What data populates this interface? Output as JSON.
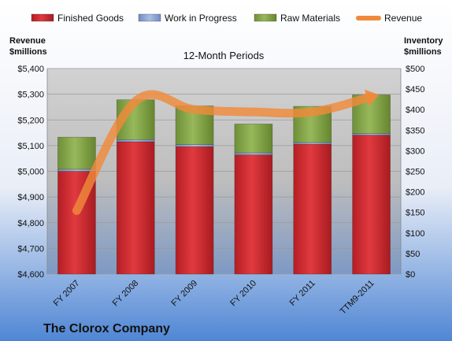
{
  "chart_data": {
    "type": "bar",
    "stacked": true,
    "subtitle": "12-Month Periods",
    "company": "The Clorox Company",
    "y_left_label": [
      "Revenue",
      "$millions"
    ],
    "y_right_label": [
      "Inventory",
      "$millions"
    ],
    "categories": [
      "FY 2007",
      "FY 2008",
      "FY 2009",
      "FY 2010",
      "FY 2011",
      "TTM9-2011"
    ],
    "series": [
      {
        "name": "Finished Goods",
        "axis": "right",
        "color": "#d42a2f",
        "values": [
          250,
          322,
          310,
          290,
          316,
          338
        ]
      },
      {
        "name": "Work in Progress",
        "axis": "right",
        "color": "#8fa8d6",
        "values": [
          5,
          5,
          5,
          5,
          4,
          4
        ]
      },
      {
        "name": "Raw Materials",
        "axis": "right",
        "color": "#8aaa4a",
        "values": [
          78,
          97,
          94,
          70,
          88,
          94
        ]
      },
      {
        "name": "Revenue",
        "axis": "left",
        "type": "line",
        "color": "#f08a3a",
        "values": [
          4847,
          5273,
          5240,
          5231,
          5231,
          5290
        ]
      }
    ],
    "y_left": {
      "min": 4600,
      "max": 5400,
      "step": 100,
      "ticks": [
        "$4,600",
        "$4,700",
        "$4,800",
        "$4,900",
        "$5,000",
        "$5,100",
        "$5,200",
        "$5,300",
        "$5,400"
      ]
    },
    "y_right": {
      "min": 0,
      "max": 500,
      "step": 50,
      "ticks": [
        "$0",
        "$50",
        "$100",
        "$150",
        "$200",
        "$250",
        "$300",
        "$350",
        "$400",
        "$450",
        "$500"
      ]
    },
    "legend_position": "top",
    "grid": true
  }
}
